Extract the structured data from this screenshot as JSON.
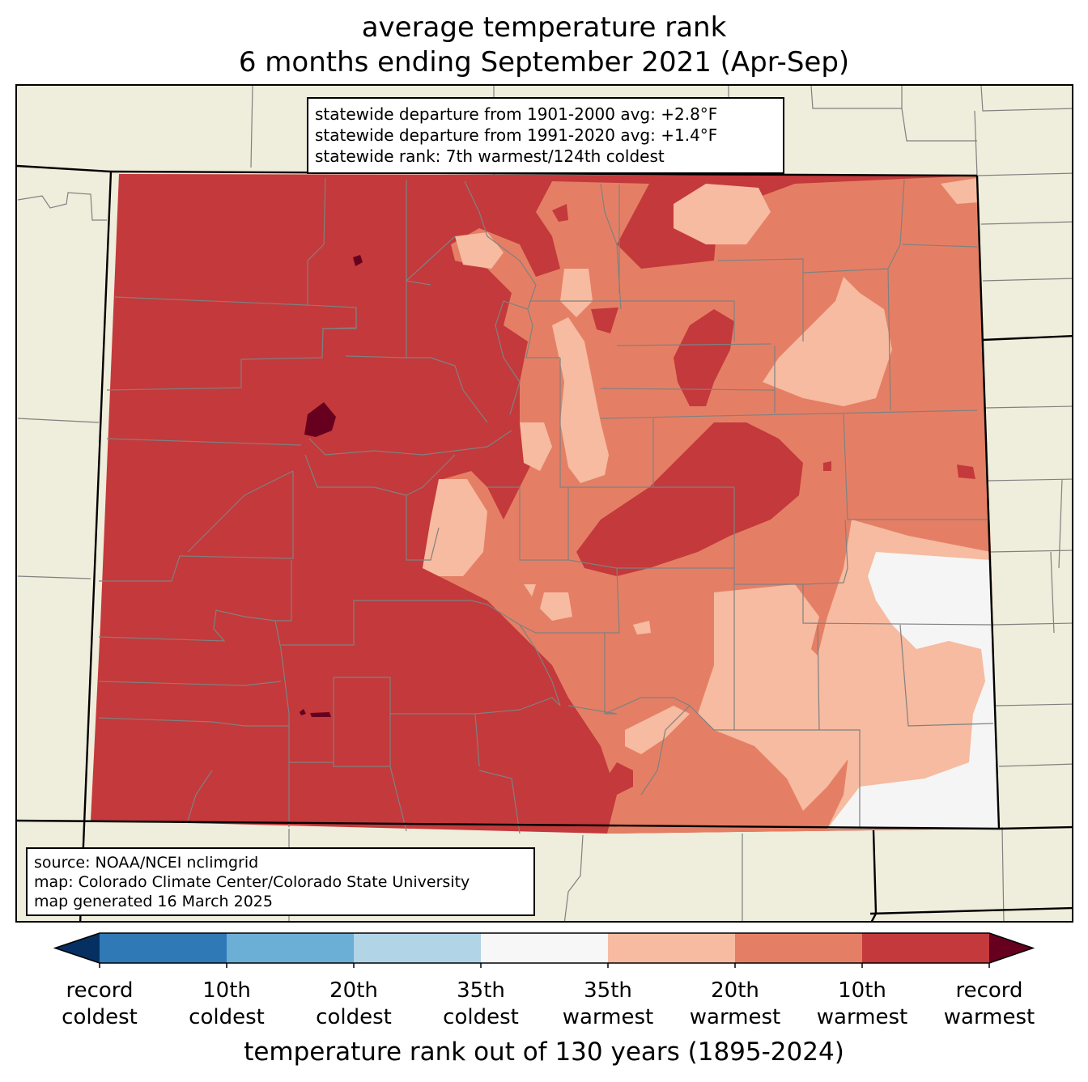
{
  "title": {
    "line1": "average temperature rank",
    "line2": "6 months ending September 2021 (Apr-Sep)"
  },
  "stats": {
    "line1": "statewide departure from 1901-2000 avg: +2.8°F",
    "line2": "statewide departure from 1991-2020 avg: +1.4°F",
    "line3": "statewide rank: 7th warmest/124th coldest"
  },
  "source": {
    "line1": "source: NOAA/NCEI nclimgrid",
    "line2": "map: Colorado Climate Center/Colorado State University",
    "line3": "map generated 16 March 2025"
  },
  "colorbar": {
    "label": "temperature rank out of 130 years (1895-2024)",
    "ticks": [
      {
        "line1": "record",
        "line2": "coldest"
      },
      {
        "line1": "10th",
        "line2": "coldest"
      },
      {
        "line1": "20th",
        "line2": "coldest"
      },
      {
        "line1": "35th",
        "line2": "coldest"
      },
      {
        "line1": "35th",
        "line2": "warmest"
      },
      {
        "line1": "20th",
        "line2": "warmest"
      },
      {
        "line1": "10th",
        "line2": "warmest"
      },
      {
        "line1": "record",
        "line2": "warmest"
      }
    ],
    "under_color": "#053061",
    "over_color": "#67001f",
    "bin_colors": [
      "#2f79b6",
      "#6baed6",
      "#b2d4e7",
      "#f7f7f7",
      "#f6bba0",
      "#e47f65",
      "#c4393b"
    ]
  },
  "colors": {
    "land_background": "#efeddb",
    "record_warmest": "#67001f",
    "top10_warmest": "#c4393b",
    "top20_warmest": "#e47f65",
    "top35_warmest": "#f6bba0",
    "near_normal": "#f5f5f5",
    "county_lines": "#808080",
    "state_lines": "#000000"
  }
}
